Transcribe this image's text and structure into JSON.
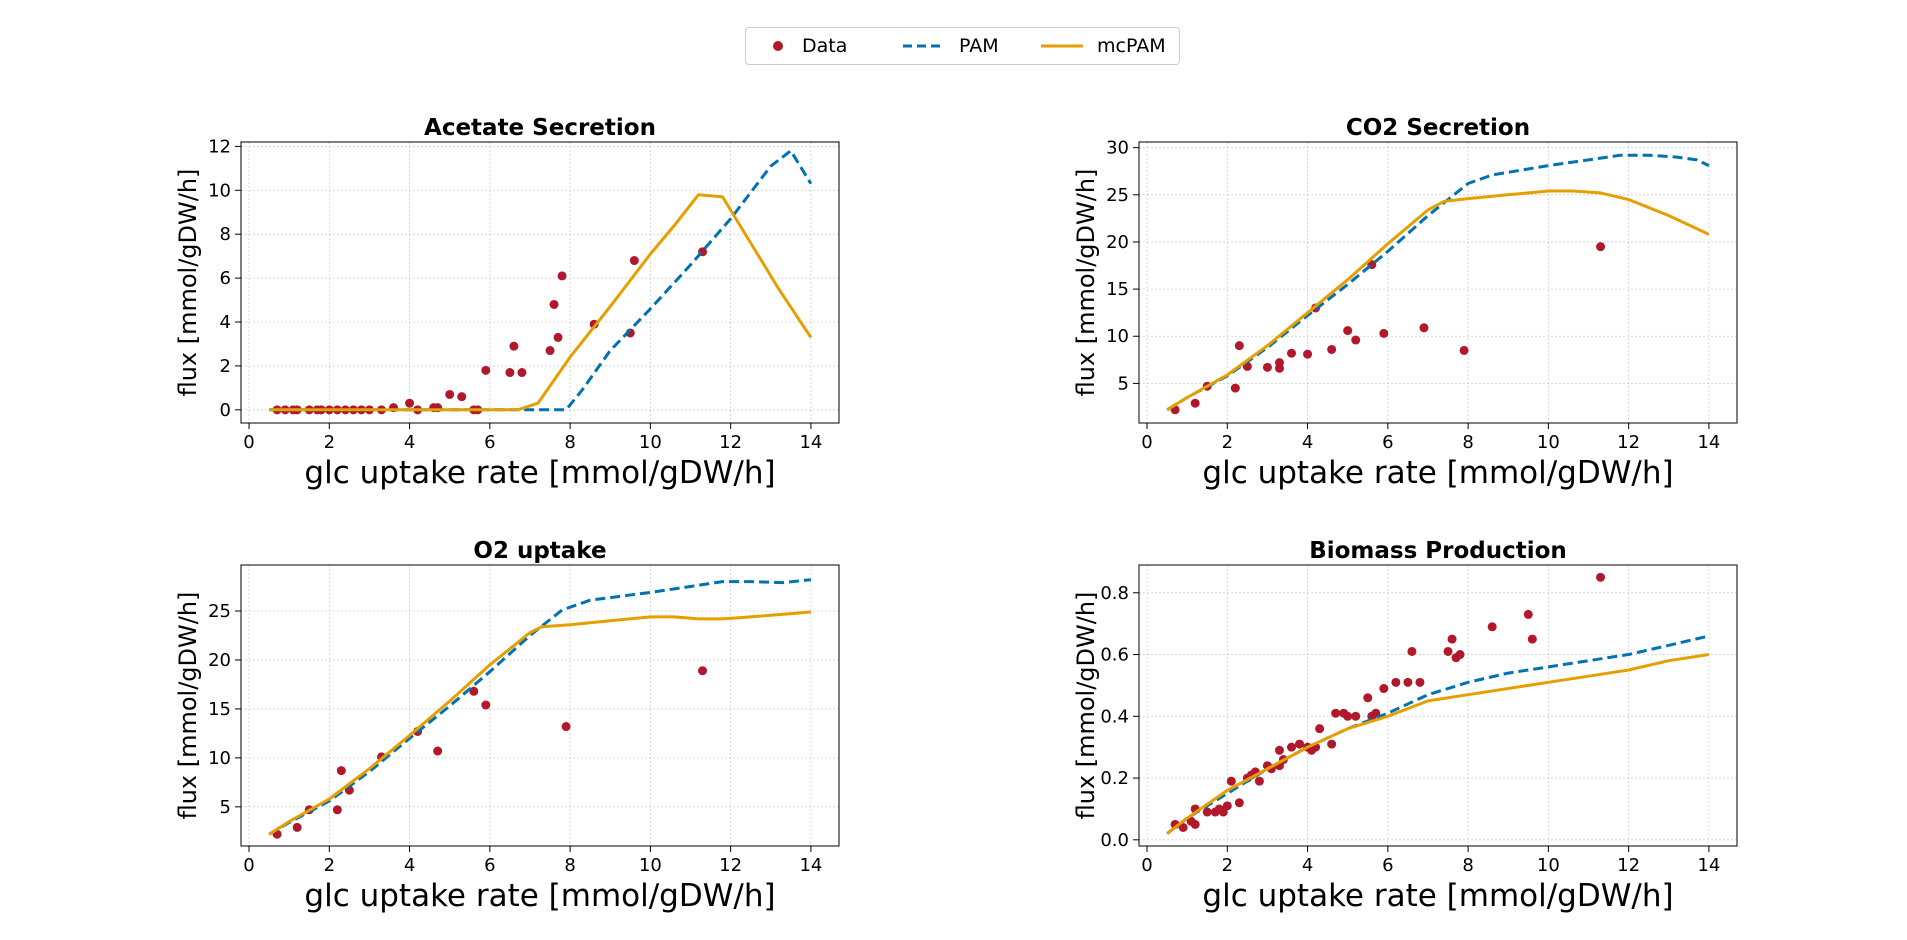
{
  "legend": {
    "items": [
      {
        "label": "Data",
        "kind": "marker",
        "color": "#b2182b"
      },
      {
        "label": "PAM",
        "kind": "dashed-line",
        "color": "#0072b2"
      },
      {
        "label": "mcPAM",
        "kind": "line",
        "color": "#e69f00"
      }
    ]
  },
  "chart_data": [
    {
      "type": "line",
      "title": "Acetate Secretion",
      "xlabel": "glc uptake rate [mmol/gDW/h]",
      "ylabel": "flux [mmol/gDW/h]",
      "xlim": [
        -0.2,
        14.7
      ],
      "ylim": [
        -0.6,
        12.2
      ],
      "xticks": [
        0,
        2,
        4,
        6,
        8,
        10,
        12,
        14
      ],
      "yticks": [
        0,
        2,
        4,
        6,
        8,
        10,
        12
      ],
      "grid": true,
      "series": [
        {
          "name": "Data",
          "style": "scatter",
          "color": "#b2182b",
          "x": [
            0.7,
            0.9,
            1.1,
            1.2,
            1.5,
            1.7,
            1.8,
            2.0,
            2.2,
            2.4,
            2.6,
            2.8,
            3.0,
            3.3,
            3.6,
            4.0,
            4.2,
            4.6,
            4.7,
            5.0,
            5.3,
            5.6,
            5.7,
            5.9,
            6.5,
            6.6,
            6.8,
            7.5,
            7.6,
            7.7,
            7.8,
            8.6,
            9.5,
            9.6,
            11.3
          ],
          "y": [
            0,
            0,
            0,
            0,
            0,
            0,
            0,
            0,
            0,
            0,
            0,
            0,
            0,
            0,
            0.1,
            0.3,
            0,
            0.1,
            0.1,
            0.7,
            0.6,
            0,
            0,
            1.8,
            1.7,
            2.9,
            1.7,
            2.7,
            4.8,
            3.3,
            6.1,
            3.9,
            3.5,
            6.8,
            7.2
          ]
        },
        {
          "name": "PAM",
          "style": "dashed",
          "color": "#0072b2",
          "x": [
            0.5,
            1,
            2,
            3,
            4,
            5,
            6,
            7,
            7.9,
            8.3,
            9,
            10,
            11,
            12,
            13,
            13.5,
            14
          ],
          "y": [
            0,
            0,
            0,
            0,
            0,
            0,
            0,
            0,
            0,
            0.9,
            2.7,
            4.6,
            6.6,
            8.7,
            11.1,
            11.8,
            10.3
          ]
        },
        {
          "name": "mcPAM",
          "style": "solid",
          "color": "#e69f00",
          "x": [
            0.5,
            1,
            2,
            3,
            4,
            5,
            6,
            6.7,
            7.2,
            8,
            9,
            10,
            10.6,
            11.2,
            11.8,
            12.5,
            13.2,
            14
          ],
          "y": [
            0,
            0,
            0,
            0,
            0,
            0,
            0,
            0,
            0.3,
            2.4,
            4.7,
            7.1,
            8.4,
            9.8,
            9.7,
            7.6,
            5.5,
            3.3
          ]
        }
      ]
    },
    {
      "type": "line",
      "title": "CO2 Secretion",
      "xlabel": "glc uptake rate [mmol/gDW/h]",
      "ylabel": "flux [mmol/gDW/h]",
      "xlim": [
        -0.2,
        14.7
      ],
      "ylim": [
        0.8,
        30.6
      ],
      "xticks": [
        0,
        2,
        4,
        6,
        8,
        10,
        12,
        14
      ],
      "yticks": [
        5,
        10,
        15,
        20,
        25,
        30
      ],
      "grid": true,
      "series": [
        {
          "name": "Data",
          "style": "scatter",
          "color": "#b2182b",
          "x": [
            0.7,
            1.2,
            1.5,
            2.2,
            2.3,
            2.5,
            3.0,
            3.3,
            3.3,
            3.6,
            4.0,
            4.2,
            4.6,
            5.0,
            5.2,
            5.6,
            5.9,
            6.9,
            7.9,
            11.3
          ],
          "y": [
            2.2,
            2.9,
            4.7,
            4.5,
            9.0,
            6.8,
            6.7,
            6.6,
            7.2,
            8.2,
            8.1,
            13.0,
            8.6,
            10.6,
            9.6,
            17.6,
            10.3,
            10.9,
            8.5,
            19.5
          ]
        },
        {
          "name": "PAM",
          "style": "dashed",
          "color": "#0072b2",
          "x": [
            0.5,
            1,
            2,
            3,
            4,
            5,
            6,
            7,
            7.5,
            8,
            8.6,
            10,
            11,
            11.8,
            12.5,
            13.2,
            13.7,
            14
          ],
          "y": [
            2.2,
            3.5,
            5.8,
            8.8,
            12.2,
            15.5,
            19.0,
            22.8,
            24.5,
            26.2,
            27.1,
            28.1,
            28.7,
            29.2,
            29.2,
            29.0,
            28.7,
            28.1
          ]
        },
        {
          "name": "mcPAM",
          "style": "solid",
          "color": "#e69f00",
          "x": [
            0.5,
            1,
            2,
            3,
            4,
            5,
            6,
            7,
            7.4,
            8,
            9,
            10,
            10.6,
            11.3,
            12,
            13,
            14
          ],
          "y": [
            2.2,
            3.5,
            5.9,
            9.0,
            12.5,
            16.0,
            19.8,
            23.4,
            24.3,
            24.6,
            25.0,
            25.4,
            25.4,
            25.2,
            24.5,
            22.8,
            20.8
          ]
        }
      ]
    },
    {
      "type": "line",
      "title": "O2 uptake",
      "xlabel": "glc uptake rate [mmol/gDW/h]",
      "ylabel": "flux [mmol/gDW/h]",
      "xlim": [
        -0.2,
        14.7
      ],
      "ylim": [
        1.0,
        29.7
      ],
      "xticks": [
        0,
        2,
        4,
        6,
        8,
        10,
        12,
        14
      ],
      "yticks": [
        5,
        10,
        15,
        20,
        25
      ],
      "grid": true,
      "series": [
        {
          "name": "Data",
          "style": "scatter",
          "color": "#b2182b",
          "x": [
            0.7,
            1.2,
            1.5,
            2.2,
            2.3,
            2.5,
            3.3,
            4.2,
            4.7,
            5.6,
            5.9,
            7.9,
            11.3
          ],
          "y": [
            2.2,
            2.9,
            4.7,
            4.7,
            8.7,
            6.7,
            10.1,
            12.7,
            10.7,
            16.8,
            15.4,
            13.2,
            18.9
          ]
        },
        {
          "name": "PAM",
          "style": "dashed",
          "color": "#0072b2",
          "x": [
            0.5,
            1,
            2,
            3,
            4,
            5,
            6,
            7,
            7.8,
            8.5,
            10,
            11,
            11.8,
            12.5,
            13.3,
            14
          ],
          "y": [
            2.2,
            3.4,
            5.6,
            8.6,
            12.0,
            15.3,
            18.8,
            22.5,
            25.1,
            26.1,
            26.9,
            27.5,
            28.0,
            28.0,
            27.9,
            28.2
          ]
        },
        {
          "name": "mcPAM",
          "style": "solid",
          "color": "#e69f00",
          "x": [
            0.5,
            1,
            2,
            3,
            4,
            5,
            6,
            7,
            7.3,
            8,
            9,
            10,
            10.6,
            11.2,
            11.8,
            12.5,
            14
          ],
          "y": [
            2.2,
            3.5,
            5.8,
            8.9,
            12.3,
            15.8,
            19.5,
            22.8,
            23.4,
            23.6,
            24.0,
            24.4,
            24.4,
            24.2,
            24.2,
            24.4,
            24.9
          ]
        }
      ]
    },
    {
      "type": "line",
      "title": "Biomass Production",
      "xlabel": "glc uptake rate [mmol/gDW/h]",
      "ylabel": "flux [mmol/gDW/h]",
      "xlim": [
        -0.2,
        14.7
      ],
      "ylim": [
        -0.02,
        0.89
      ],
      "xticks": [
        0,
        2,
        4,
        6,
        8,
        10,
        12,
        14
      ],
      "yticks": [
        0.0,
        0.2,
        0.4,
        0.6,
        0.8
      ],
      "ytick_labels": [
        "0.0",
        "0.2",
        "0.4",
        "0.6",
        "0.8"
      ],
      "grid": true,
      "series": [
        {
          "name": "Data",
          "style": "scatter",
          "color": "#b2182b",
          "x": [
            0.7,
            0.9,
            1.1,
            1.2,
            1.2,
            1.5,
            1.7,
            1.8,
            1.9,
            2.0,
            2.1,
            2.3,
            2.5,
            2.6,
            2.7,
            2.8,
            3.0,
            3.1,
            3.3,
            3.3,
            3.4,
            3.6,
            3.8,
            4.0,
            4.1,
            4.2,
            4.3,
            4.6,
            4.7,
            4.9,
            5.0,
            5.2,
            5.5,
            5.6,
            5.7,
            5.9,
            6.2,
            6.5,
            6.6,
            6.8,
            7.5,
            7.6,
            7.7,
            7.8,
            8.6,
            9.5,
            9.6,
            11.3
          ],
          "y": [
            0.05,
            0.04,
            0.06,
            0.1,
            0.05,
            0.09,
            0.09,
            0.1,
            0.09,
            0.11,
            0.19,
            0.12,
            0.2,
            0.21,
            0.22,
            0.19,
            0.24,
            0.23,
            0.29,
            0.24,
            0.26,
            0.3,
            0.31,
            0.3,
            0.29,
            0.3,
            0.36,
            0.31,
            0.41,
            0.41,
            0.4,
            0.4,
            0.46,
            0.4,
            0.41,
            0.49,
            0.51,
            0.51,
            0.61,
            0.51,
            0.61,
            0.65,
            0.59,
            0.6,
            0.69,
            0.73,
            0.65,
            0.85
          ]
        },
        {
          "name": "PAM",
          "style": "dashed",
          "color": "#0072b2",
          "x": [
            0.5,
            1,
            2,
            3,
            4,
            5,
            6,
            7,
            8,
            9,
            10,
            11,
            12,
            13,
            14
          ],
          "y": [
            0.02,
            0.07,
            0.15,
            0.23,
            0.3,
            0.36,
            0.41,
            0.47,
            0.51,
            0.54,
            0.56,
            0.58,
            0.6,
            0.63,
            0.66
          ]
        },
        {
          "name": "mcPAM",
          "style": "solid",
          "color": "#e69f00",
          "x": [
            0.5,
            1,
            2,
            3,
            4,
            5,
            6,
            7,
            8,
            9,
            10,
            11,
            12,
            13,
            14
          ],
          "y": [
            0.02,
            0.07,
            0.16,
            0.23,
            0.3,
            0.36,
            0.4,
            0.45,
            0.47,
            0.49,
            0.51,
            0.53,
            0.55,
            0.58,
            0.6
          ]
        }
      ]
    }
  ]
}
